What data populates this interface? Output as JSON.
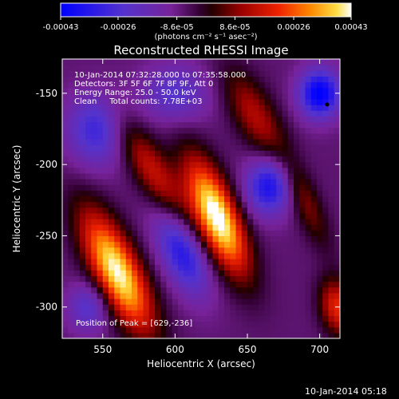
{
  "colorbar": {
    "ticks": [
      "-0.00043",
      "-0.00026",
      "-8.6e-05",
      "8.6e-05",
      "0.00026",
      "0.00043"
    ],
    "tick_values": [
      -0.00043,
      -0.00026,
      -8.6e-05,
      8.6e-05,
      0.00026,
      0.00043
    ],
    "range": [
      -0.00043,
      0.00043
    ],
    "units": "(photons cm⁻² s⁻¹ asec⁻²)",
    "colormap": [
      "#0000ff",
      "#5533cc",
      "#7733aa",
      "#550055",
      "#000000",
      "#660000",
      "#cc0000",
      "#ff6600",
      "#ffcc33",
      "#ffffff"
    ]
  },
  "overlay": {
    "line1": "10-Jan-2014 07:32:28.000 to 07:35:58.000",
    "line2": "Detectors: 3F 5F 6F 7F 8F 9F, Att 0",
    "line3": "Energy Range: 25.0 - 50.0 keV",
    "line4": "Clean     Total counts: 7.78E+03",
    "peak": "Position of Peak = [629,-236]"
  },
  "footer": {
    "timestamp": "10-Jan-2014 05:18"
  },
  "chart_data": {
    "type": "heatmap",
    "title": "Reconstructed RHESSI Image",
    "xlabel": "Heliocentric X (arcsec)",
    "ylabel": "Heliocentric Y (arcsec)",
    "xlim": [
      522,
      714
    ],
    "ylim": [
      -322,
      -126
    ],
    "xticks": [
      550,
      600,
      650,
      700
    ],
    "yticks": [
      -150,
      -200,
      -250,
      -300
    ],
    "grid": false,
    "peak_position": [
      629,
      -236
    ],
    "bright_sources": [
      {
        "x": 560,
        "y": -275,
        "level": 0.95
      },
      {
        "x": 629,
        "y": -236,
        "level": 1.0
      },
      {
        "x": 712,
        "y": -296,
        "level": 0.5
      }
    ]
  }
}
